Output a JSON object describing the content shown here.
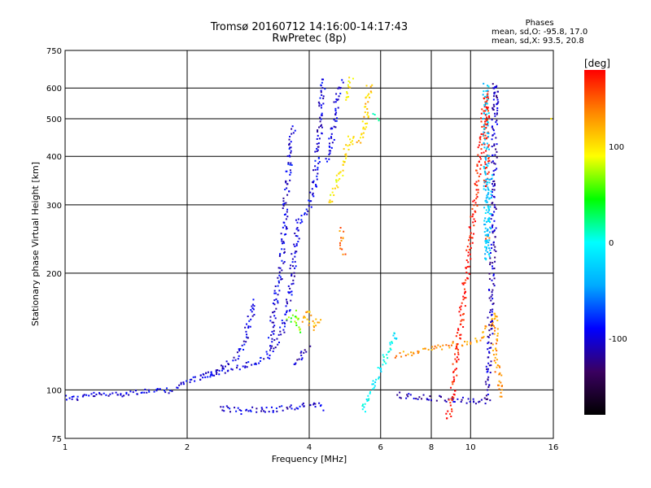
{
  "header": {
    "title": "Tromsø 20160712 14:16:00-14:17:43",
    "subtitle": "RwPretec (8p)"
  },
  "phases": {
    "heading": "Phases",
    "o_mode": "mean, sd,O: -95.8, 17.0",
    "x_mode": "mean, sd,X:  93.5, 20.8"
  },
  "chart_data": {
    "type": "scatter",
    "xlabel": "Frequency [MHz]",
    "ylabel": "Stationary phase Virtual Height [km]",
    "xscale": "log",
    "yscale": "log",
    "xlim": [
      1,
      16
    ],
    "ylim": [
      75,
      750
    ],
    "xticks": [
      1,
      2,
      4,
      6,
      8,
      10,
      16
    ],
    "yticks": [
      75,
      100,
      200,
      300,
      400,
      500,
      600,
      750
    ],
    "grid": true,
    "colorbar": {
      "label": "[deg]",
      "range": [
        -180,
        180
      ],
      "ticks": [
        -100,
        0,
        100
      ],
      "colormap": [
        "#000000",
        "#3a0060",
        "#0000ff",
        "#00aaff",
        "#00ffff",
        "#00ff00",
        "#ffff00",
        "#ff8800",
        "#ff0000"
      ]
    },
    "traces": [
      {
        "name": "",
        "phase": -100,
        "points": [
          [
            1.0,
            96
          ],
          [
            1.05,
            95
          ],
          [
            1.15,
            97
          ],
          [
            1.25,
            97
          ],
          [
            1.4,
            98
          ],
          [
            1.55,
            99
          ],
          [
            1.7,
            99
          ],
          [
            1.85,
            100
          ],
          [
            1.95,
            104
          ],
          [
            2.1,
            107
          ],
          [
            2.3,
            110
          ],
          [
            2.55,
            113
          ],
          [
            2.85,
            116
          ],
          [
            3.1,
            120
          ],
          [
            3.25,
            126
          ],
          [
            3.35,
            134
          ],
          [
            3.45,
            145
          ],
          [
            3.55,
            165
          ],
          [
            3.62,
            190
          ],
          [
            3.7,
            240
          ],
          [
            3.78,
            275
          ],
          [
            3.9,
            285
          ],
          [
            4.0,
            300
          ],
          [
            4.1,
            330
          ],
          [
            4.2,
            400
          ],
          [
            4.28,
            520
          ],
          [
            4.35,
            640
          ]
        ]
      },
      {
        "name": "",
        "phase": -100,
        "points": [
          [
            2.15,
            108
          ],
          [
            2.4,
            112
          ],
          [
            2.6,
            120
          ],
          [
            2.75,
            130
          ],
          [
            2.85,
            150
          ],
          [
            2.95,
            172
          ]
        ]
      },
      {
        "name": "",
        "phase": -100,
        "points": [
          [
            3.2,
            130
          ],
          [
            3.3,
            170
          ],
          [
            3.4,
            200
          ],
          [
            3.45,
            230
          ],
          [
            3.5,
            300
          ],
          [
            3.55,
            360
          ],
          [
            3.6,
            420
          ],
          [
            3.65,
            480
          ]
        ]
      },
      {
        "name": "",
        "phase": -100,
        "points": [
          [
            4.4,
            390
          ],
          [
            4.5,
            420
          ],
          [
            4.6,
            480
          ],
          [
            4.7,
            560
          ],
          [
            4.8,
            630
          ]
        ]
      },
      {
        "name": "",
        "phase": -110,
        "points": [
          [
            3.7,
            115
          ],
          [
            3.8,
            120
          ],
          [
            3.9,
            125
          ],
          [
            4.0,
            130
          ]
        ]
      },
      {
        "name": "",
        "phase": -100,
        "points": [
          [
            2.4,
            90
          ],
          [
            2.55,
            89
          ],
          [
            2.7,
            88
          ],
          [
            2.85,
            89
          ],
          [
            3.2,
            89
          ],
          [
            3.4,
            89
          ],
          [
            3.6,
            90
          ],
          [
            4.0,
            92
          ],
          [
            4.2,
            91
          ],
          [
            4.3,
            88
          ]
        ]
      },
      {
        "name": "",
        "phase": 100,
        "points": [
          [
            4.5,
            300
          ],
          [
            4.6,
            320
          ],
          [
            4.7,
            340
          ],
          [
            4.8,
            370
          ],
          [
            4.9,
            400
          ],
          [
            5.0,
            430
          ],
          [
            5.1,
            460
          ]
        ]
      },
      {
        "name": "",
        "phase": 110,
        "points": [
          [
            5.2,
            430
          ],
          [
            5.35,
            440
          ],
          [
            5.45,
            470
          ],
          [
            5.55,
            520
          ],
          [
            5.6,
            570
          ],
          [
            5.65,
            620
          ]
        ]
      },
      {
        "name": "",
        "phase": 100,
        "points": [
          [
            4.9,
            560
          ],
          [
            5.0,
            600
          ],
          [
            5.1,
            640
          ]
        ]
      },
      {
        "name": "",
        "phase": 120,
        "points": [
          [
            3.9,
            150
          ],
          [
            3.95,
            160
          ],
          [
            4.1,
            145
          ],
          [
            4.2,
            150
          ],
          [
            4.3,
            148
          ]
        ]
      },
      {
        "name": "",
        "phase": 60,
        "points": [
          [
            3.55,
            150
          ],
          [
            3.7,
            158
          ],
          [
            3.8,
            140
          ]
        ]
      },
      {
        "name": "",
        "phase": 20,
        "points": [
          [
            5.8,
            510
          ],
          [
            6.0,
            500
          ]
        ]
      },
      {
        "name": "",
        "phase": 140,
        "points": [
          [
            4.8,
            258
          ],
          [
            4.85,
            222
          ]
        ]
      },
      {
        "name": "",
        "phase": -5,
        "points": [
          [
            5.4,
            88
          ],
          [
            6.6,
            143
          ]
        ]
      },
      {
        "name": "",
        "phase": 130,
        "points": [
          [
            6.6,
            123
          ],
          [
            10.6,
            135
          ],
          [
            11.5,
            158
          ],
          [
            11.5,
            123
          ],
          [
            12.0,
            95
          ]
        ]
      },
      {
        "name": "",
        "phase": -110,
        "points": [
          [
            6.6,
            97
          ],
          [
            11.0,
            93
          ],
          [
            11.4,
            248
          ],
          [
            11.5,
            612
          ],
          [
            11.55,
            515
          ]
        ]
      },
      {
        "name": "",
        "phase": 175,
        "points": [
          [
            8.8,
            87
          ],
          [
            8.85,
            85
          ],
          [
            10.3,
            313
          ],
          [
            10.95,
            585
          ],
          [
            10.95,
            340
          ],
          [
            11.0,
            330
          ]
        ]
      },
      {
        "name": "",
        "phase": 150,
        "points": [
          [
            11.0,
            248
          ],
          [
            11.0,
            240
          ]
        ]
      },
      {
        "name": "",
        "phase": -30,
        "points": [
          [
            10.9,
            615
          ],
          [
            11.0,
            218
          ],
          [
            11.15,
            360
          ]
        ]
      },
      {
        "name": "",
        "phase": 100,
        "points": [
          [
            15.8,
            500
          ]
        ]
      }
    ]
  }
}
